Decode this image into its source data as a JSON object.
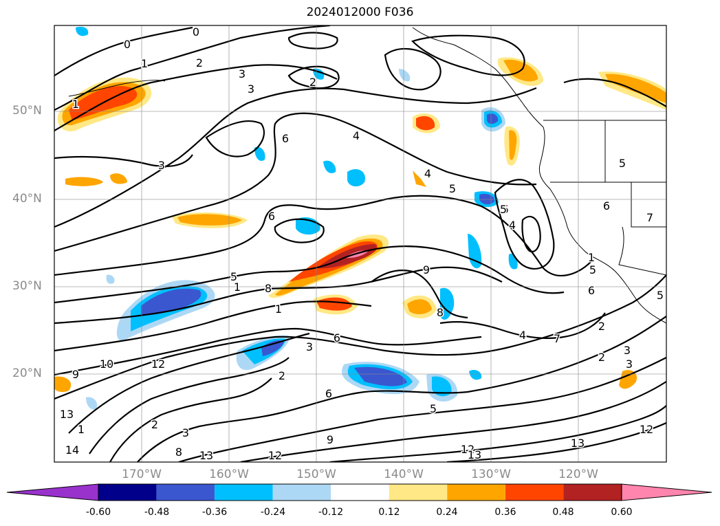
{
  "title": "2024012000 F036",
  "lat_labels": [
    "50°N",
    "40°N",
    "30°N",
    "20°N"
  ],
  "lon_labels": [
    "170°W",
    "160°W",
    "150°W",
    "140°W",
    "130°W",
    "120°W"
  ],
  "colorbar": {
    "ticks": [
      "-0.60",
      "-0.48",
      "-0.36",
      "-0.24",
      "-0.12",
      "0.12",
      "0.24",
      "0.36",
      "0.48",
      "0.60"
    ],
    "colors": [
      "#9932cc",
      "#00008b",
      "#3a57d0",
      "#00bfff",
      "#add8f5",
      "#ffffff",
      "#ffe885",
      "#ffa500",
      "#ff4500",
      "#b22222",
      "#ff85ae"
    ]
  },
  "contour_labels": [
    "0",
    "0",
    "1",
    "2",
    "3",
    "3",
    "2",
    "1",
    "3",
    "6",
    "4",
    "4",
    "5",
    "5",
    "4",
    "6",
    "5",
    "1",
    "8",
    "1",
    "9",
    "8",
    "4",
    "7",
    "2",
    "3",
    "6",
    "3",
    "2",
    "12",
    "10",
    "9",
    "13",
    "1",
    "14",
    "2",
    "3",
    "8",
    "13",
    "12",
    "6",
    "5",
    "9",
    "12",
    "13",
    "12",
    "13",
    "1",
    "5",
    "6",
    "5",
    "7",
    "2",
    "3",
    "5",
    "5",
    "6"
  ]
}
